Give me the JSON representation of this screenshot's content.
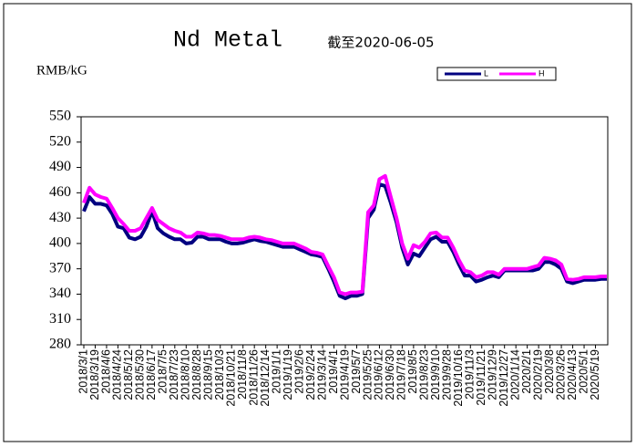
{
  "chart_data": {
    "type": "line",
    "title": "Nd Metal",
    "subtitle": "截至2020-06-05",
    "y_label": "RMB/kG",
    "categories": [
      "2018/3/1",
      null,
      "2018/3/19",
      null,
      "2018/4/6",
      null,
      "2018/4/24",
      null,
      "2018/5/12",
      null,
      "2018/5/30",
      null,
      "2018/6/17",
      null,
      "2018/7/5",
      null,
      "2018/7/23",
      null,
      "2018/8/10",
      null,
      "2018/8/28",
      null,
      "2018/9/15",
      null,
      "2018/10/3",
      null,
      "2018/10/21",
      null,
      "2018/11/8",
      null,
      "2018/11/26",
      null,
      "2018/12/14",
      null,
      "2019/1/1",
      null,
      "2019/1/19",
      null,
      "2019/2/6",
      null,
      "2019/2/24",
      null,
      "2019/3/14",
      null,
      "2019/4/1",
      null,
      "2019/4/19",
      null,
      "2019/5/7",
      null,
      "2019/5/25",
      null,
      "2019/6/12",
      null,
      "2019/6/30",
      null,
      "2019/7/18",
      null,
      "2019/8/5",
      null,
      "2019/8/23",
      null,
      "2019/9/10",
      null,
      "2019/9/28",
      null,
      "2019/10/16",
      null,
      "2019/11/3",
      null,
      "2019/11/21",
      null,
      "2019/12/9",
      null,
      "2019/12/27",
      null,
      "2020/1/14",
      null,
      "2020/2/1",
      null,
      "2020/2/19",
      null,
      "2020/3/8",
      null,
      "2020/3/26",
      null,
      "2020/4/13",
      null,
      "2020/5/1",
      null,
      "2020/5/19",
      null,
      null
    ],
    "series": [
      {
        "name": "L",
        "color": "#000080",
        "values": [
          438,
          455,
          447,
          447,
          445,
          435,
          420,
          418,
          407,
          405,
          408,
          420,
          438,
          418,
          412,
          408,
          405,
          405,
          400,
          401,
          408,
          408,
          405,
          405,
          405,
          402,
          400,
          400,
          401,
          403,
          405,
          403,
          402,
          400,
          398,
          396,
          396,
          396,
          393,
          390,
          387,
          386,
          384,
          370,
          355,
          338,
          335,
          338,
          338,
          340,
          430,
          440,
          470,
          468,
          448,
          425,
          395,
          375,
          388,
          385,
          395,
          405,
          408,
          402,
          402,
          390,
          375,
          362,
          362,
          355,
          357,
          360,
          362,
          360,
          368,
          368,
          368,
          368,
          368,
          368,
          370,
          378,
          378,
          375,
          370,
          355,
          353,
          355,
          357,
          357,
          357,
          358,
          358
        ]
      },
      {
        "name": "H",
        "color": "#ff00ff",
        "values": [
          448,
          466,
          458,
          455,
          453,
          442,
          430,
          423,
          415,
          415,
          418,
          430,
          442,
          428,
          423,
          418,
          415,
          413,
          408,
          408,
          413,
          412,
          410,
          410,
          409,
          407,
          405,
          405,
          405,
          407,
          408,
          407,
          405,
          404,
          402,
          400,
          400,
          400,
          397,
          394,
          390,
          389,
          387,
          373,
          360,
          342,
          340,
          342,
          342,
          343,
          437,
          445,
          476,
          480,
          455,
          430,
          400,
          382,
          398,
          395,
          402,
          412,
          413,
          407,
          407,
          395,
          380,
          368,
          366,
          360,
          362,
          366,
          366,
          363,
          370,
          370,
          370,
          370,
          370,
          372,
          374,
          383,
          382,
          380,
          375,
          358,
          357,
          358,
          360,
          360,
          360,
          361,
          361
        ]
      }
    ],
    "ylim": [
      280,
      550
    ],
    "yticks": [
      280,
      310,
      340,
      370,
      400,
      430,
      460,
      490,
      520,
      550
    ],
    "legend": "top-right"
  }
}
